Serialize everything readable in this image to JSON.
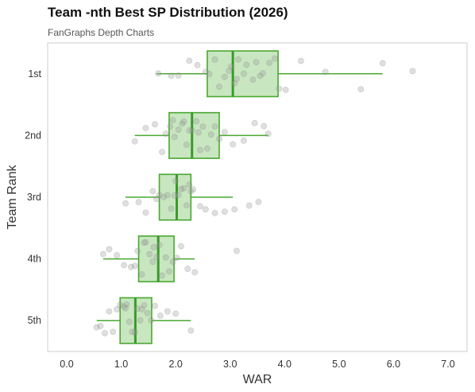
{
  "chart_data": {
    "type": "boxplot",
    "title": "Team -nth Best SP Distribution (2026)",
    "subtitle": "FanGraphs Depth Charts",
    "xlabel": "WAR",
    "ylabel": "Team Rank",
    "xlim": [
      -0.35,
      7.35
    ],
    "xticks": [
      0,
      1,
      2,
      3,
      4,
      5,
      6,
      7
    ],
    "xtick_labels": [
      "0.0",
      "1.0",
      "2.0",
      "3.0",
      "4.0",
      "5.0",
      "6.0",
      "7.0"
    ],
    "categories": [
      "1st",
      "2nd",
      "3rd",
      "4th",
      "5th"
    ],
    "grid": false,
    "colors": {
      "box_fill": "#c8e6c0",
      "box_edge": "#4aa832",
      "median": "#3a9a2a",
      "point": "#9a9a9a",
      "frame": "#cccccc"
    },
    "boxes": [
      {
        "category": "1st",
        "whisker_low": 1.65,
        "q1": 2.58,
        "median": 3.05,
        "q3": 3.88,
        "whisker_high": 5.8
      },
      {
        "category": "2nd",
        "whisker_low": 1.25,
        "q1": 1.88,
        "median": 2.3,
        "q3": 2.8,
        "whisker_high": 3.7
      },
      {
        "category": "3rd",
        "whisker_low": 1.08,
        "q1": 1.7,
        "median": 2.02,
        "q3": 2.28,
        "whisker_high": 3.05
      },
      {
        "category": "4th",
        "whisker_low": 0.67,
        "q1": 1.32,
        "median": 1.68,
        "q3": 1.97,
        "whisker_high": 2.35
      },
      {
        "category": "5th",
        "whisker_low": 0.55,
        "q1": 0.98,
        "median": 1.26,
        "q3": 1.56,
        "whisker_high": 2.28
      }
    ],
    "points": [
      [
        1.68,
        1.92,
        2.25,
        2.4,
        2.55,
        2.62,
        2.72,
        2.8,
        2.9,
        2.98,
        3.02,
        3.08,
        3.12,
        3.15,
        3.25,
        3.3,
        3.42,
        3.48,
        3.55,
        3.6,
        3.72,
        3.82,
        3.9,
        4.02,
        4.3,
        4.75,
        5.4,
        5.8,
        6.35,
        2.05
      ],
      [
        1.25,
        1.45,
        1.62,
        1.75,
        1.82,
        1.9,
        1.98,
        2.05,
        2.12,
        2.2,
        2.25,
        2.3,
        2.38,
        2.45,
        2.5,
        2.58,
        2.65,
        2.72,
        2.8,
        2.9,
        3.05,
        3.25,
        3.45,
        3.62,
        3.7,
        2.15,
        1.95,
        2.42
      ],
      [
        1.08,
        1.32,
        1.45,
        1.58,
        1.7,
        1.78,
        1.85,
        1.92,
        1.98,
        2.05,
        2.1,
        2.15,
        2.2,
        2.25,
        2.32,
        2.45,
        2.55,
        2.72,
        2.9,
        3.08,
        3.35,
        3.52,
        1.65,
        2.0,
        2.28
      ],
      [
        0.67,
        0.78,
        0.92,
        1.05,
        1.18,
        1.3,
        1.38,
        1.45,
        1.52,
        1.58,
        1.65,
        1.7,
        1.75,
        1.82,
        1.88,
        1.95,
        2.02,
        2.1,
        2.22,
        2.35,
        3.12,
        1.42,
        1.6,
        1.25
      ],
      [
        0.55,
        0.62,
        0.7,
        0.78,
        0.85,
        0.92,
        0.98,
        1.05,
        1.1,
        1.15,
        1.2,
        1.25,
        1.3,
        1.35,
        1.42,
        1.48,
        1.55,
        1.62,
        1.72,
        1.85,
        2.0,
        2.28,
        1.08,
        1.38
      ]
    ]
  }
}
